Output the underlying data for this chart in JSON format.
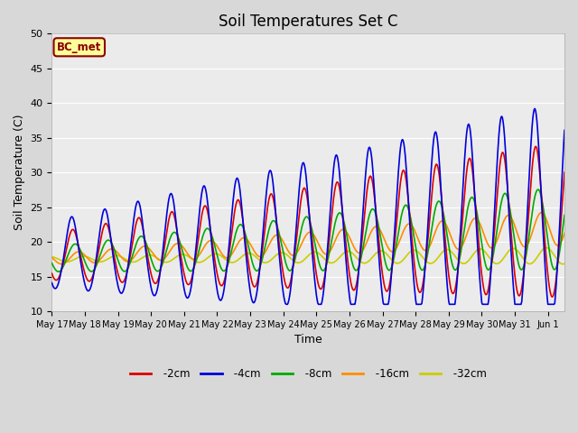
{
  "title": "Soil Temperatures Set C",
  "xlabel": "Time",
  "ylabel": "Soil Temperature (C)",
  "ylim": [
    10,
    50
  ],
  "x_tick_labels": [
    "May 17",
    "May 18",
    "May 19",
    "May 20",
    "May 21",
    "May 22",
    "May 23",
    "May 24",
    "May 25",
    "May 26",
    "May 27",
    "May 28",
    "May 29",
    "May 30",
    "May 31",
    "Jun 1"
  ],
  "annotation_text": "BC_met",
  "annotation_bg": "#ffff99",
  "annotation_border": "#8B0000",
  "series": {
    "-2cm": {
      "color": "#dd0000",
      "lw": 1.2
    },
    "-4cm": {
      "color": "#0000dd",
      "lw": 1.2
    },
    "-8cm": {
      "color": "#00aa00",
      "lw": 1.2
    },
    "-16cm": {
      "color": "#ff8c00",
      "lw": 1.2
    },
    "-32cm": {
      "color": "#cccc00",
      "lw": 1.2
    }
  },
  "bg_color": "#d8d8d8",
  "plot_bg": "#ebebeb",
  "title_fontsize": 12,
  "tick_fontsize": 7,
  "label_fontsize": 9
}
